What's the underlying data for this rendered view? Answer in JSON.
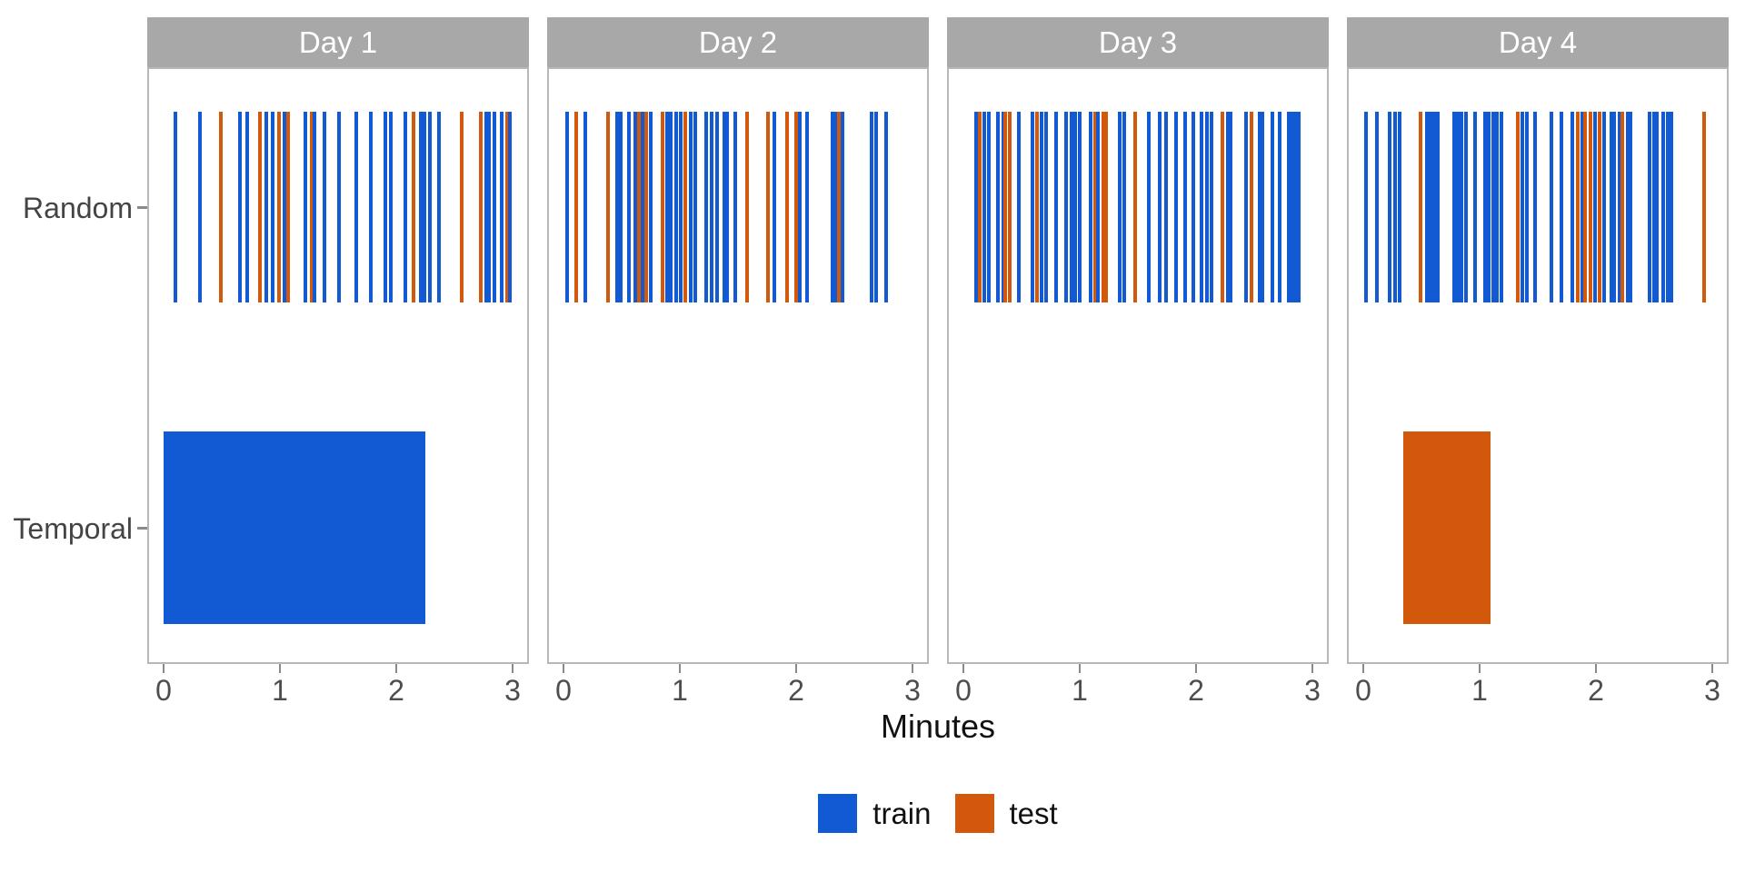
{
  "chart_data": {
    "type": "event-raster-facets",
    "xlabel": "Minutes",
    "xlim": [
      0,
      3
    ],
    "x_ticks": [
      "0",
      "1",
      "2",
      "3"
    ],
    "row_labels": [
      "Random",
      "Temporal"
    ],
    "legend": [
      {
        "label": "train",
        "class": "train"
      },
      {
        "label": "test",
        "class": "test"
      }
    ],
    "colors": {
      "train": "#1259d4",
      "test": "#d2580c",
      "strip_bg": "#a8a8a8",
      "strip_text": "#ffffff",
      "panel_border": "#b8b8b8",
      "tick_mark": "#8a8a8a",
      "tick_label": "#4d4d4d"
    },
    "panels": [
      {
        "label": "Day 1",
        "random_events": [
          [
            0.1,
            "train"
          ],
          [
            0.31,
            "train"
          ],
          [
            0.49,
            "test"
          ],
          [
            0.66,
            "train"
          ],
          [
            0.72,
            "train"
          ],
          [
            0.83,
            "test"
          ],
          [
            0.88,
            "train"
          ],
          [
            0.94,
            "train"
          ],
          [
            0.99,
            "test"
          ],
          [
            1.04,
            "train"
          ],
          [
            1.07,
            "test"
          ],
          [
            1.22,
            "train"
          ],
          [
            1.27,
            "test"
          ],
          [
            1.3,
            "train"
          ],
          [
            1.38,
            "train"
          ],
          [
            1.51,
            "train"
          ],
          [
            1.66,
            "train"
          ],
          [
            1.78,
            "train"
          ],
          [
            1.91,
            "train"
          ],
          [
            1.95,
            "train"
          ],
          [
            2.08,
            "train"
          ],
          [
            2.15,
            "test"
          ],
          [
            2.21,
            "train"
          ],
          [
            2.24,
            "train"
          ],
          [
            2.29,
            "train"
          ],
          [
            2.37,
            "train"
          ],
          [
            2.56,
            "test"
          ],
          [
            2.73,
            "test"
          ],
          [
            2.77,
            "train"
          ],
          [
            2.8,
            "train"
          ],
          [
            2.84,
            "train"
          ],
          [
            2.91,
            "train"
          ],
          [
            2.95,
            "test"
          ],
          [
            2.98,
            "train"
          ]
        ],
        "temporal_segments": [
          {
            "start": 0.0,
            "end": 2.25,
            "class": "train"
          }
        ]
      },
      {
        "label": "Day 2",
        "random_events": [
          [
            0.03,
            "train"
          ],
          [
            0.11,
            "test"
          ],
          [
            0.19,
            "train"
          ],
          [
            0.38,
            "test"
          ],
          [
            0.46,
            "train"
          ],
          [
            0.49,
            "train"
          ],
          [
            0.56,
            "train"
          ],
          [
            0.62,
            "train"
          ],
          [
            0.65,
            "test"
          ],
          [
            0.68,
            "train"
          ],
          [
            0.71,
            "test"
          ],
          [
            0.75,
            "train"
          ],
          [
            0.85,
            "test"
          ],
          [
            0.89,
            "train"
          ],
          [
            0.92,
            "train"
          ],
          [
            0.97,
            "train"
          ],
          [
            1.01,
            "train"
          ],
          [
            1.05,
            "test"
          ],
          [
            1.09,
            "train"
          ],
          [
            1.13,
            "train"
          ],
          [
            1.23,
            "train"
          ],
          [
            1.27,
            "train"
          ],
          [
            1.32,
            "train"
          ],
          [
            1.38,
            "train"
          ],
          [
            1.41,
            "train"
          ],
          [
            1.48,
            "train"
          ],
          [
            1.58,
            "test"
          ],
          [
            1.76,
            "test"
          ],
          [
            1.81,
            "train"
          ],
          [
            1.92,
            "test"
          ],
          [
            2.0,
            "test"
          ],
          [
            2.03,
            "train"
          ],
          [
            2.09,
            "train"
          ],
          [
            2.31,
            "train"
          ],
          [
            2.34,
            "train"
          ],
          [
            2.37,
            "test"
          ],
          [
            2.4,
            "train"
          ],
          [
            2.65,
            "train"
          ],
          [
            2.69,
            "train"
          ],
          [
            2.77,
            "train"
          ]
        ],
        "temporal_segments": []
      },
      {
        "label": "Day 3",
        "random_events": [
          [
            0.11,
            "train"
          ],
          [
            0.14,
            "test"
          ],
          [
            0.18,
            "train"
          ],
          [
            0.22,
            "train"
          ],
          [
            0.3,
            "train"
          ],
          [
            0.34,
            "train"
          ],
          [
            0.36,
            "test"
          ],
          [
            0.4,
            "test"
          ],
          [
            0.48,
            "train"
          ],
          [
            0.59,
            "train"
          ],
          [
            0.63,
            "test"
          ],
          [
            0.67,
            "train"
          ],
          [
            0.71,
            "train"
          ],
          [
            0.8,
            "train"
          ],
          [
            0.88,
            "train"
          ],
          [
            0.93,
            "train"
          ],
          [
            0.96,
            "train"
          ],
          [
            1.0,
            "train"
          ],
          [
            1.09,
            "train"
          ],
          [
            1.13,
            "test"
          ],
          [
            1.16,
            "train"
          ],
          [
            1.2,
            "test"
          ],
          [
            1.23,
            "test"
          ],
          [
            1.34,
            "train"
          ],
          [
            1.38,
            "train"
          ],
          [
            1.48,
            "test"
          ],
          [
            1.59,
            "train"
          ],
          [
            1.69,
            "train"
          ],
          [
            1.74,
            "train"
          ],
          [
            1.83,
            "train"
          ],
          [
            1.91,
            "train"
          ],
          [
            1.98,
            "train"
          ],
          [
            2.05,
            "train"
          ],
          [
            2.09,
            "train"
          ],
          [
            2.13,
            "train"
          ],
          [
            2.23,
            "test"
          ],
          [
            2.27,
            "train"
          ],
          [
            2.3,
            "train"
          ],
          [
            2.43,
            "train"
          ],
          [
            2.48,
            "test"
          ],
          [
            2.55,
            "train"
          ],
          [
            2.57,
            "train"
          ],
          [
            2.66,
            "train"
          ],
          [
            2.72,
            "train"
          ],
          [
            2.8,
            "train"
          ],
          [
            2.82,
            "train"
          ],
          [
            2.85,
            "train"
          ],
          [
            2.88,
            "train"
          ]
        ],
        "temporal_segments": []
      },
      {
        "label": "Day 4",
        "random_events": [
          [
            0.02,
            "train"
          ],
          [
            0.12,
            "train"
          ],
          [
            0.23,
            "train"
          ],
          [
            0.27,
            "train"
          ],
          [
            0.31,
            "train"
          ],
          [
            0.49,
            "test"
          ],
          [
            0.55,
            "train"
          ],
          [
            0.58,
            "train"
          ],
          [
            0.61,
            "train"
          ],
          [
            0.64,
            "train"
          ],
          [
            0.78,
            "train"
          ],
          [
            0.81,
            "train"
          ],
          [
            0.84,
            "train"
          ],
          [
            0.88,
            "train"
          ],
          [
            0.96,
            "train"
          ],
          [
            1.05,
            "train"
          ],
          [
            1.08,
            "train"
          ],
          [
            1.12,
            "train"
          ],
          [
            1.15,
            "train"
          ],
          [
            1.19,
            "train"
          ],
          [
            1.33,
            "test"
          ],
          [
            1.37,
            "train"
          ],
          [
            1.41,
            "train"
          ],
          [
            1.48,
            "train"
          ],
          [
            1.62,
            "train"
          ],
          [
            1.7,
            "train"
          ],
          [
            1.8,
            "train"
          ],
          [
            1.84,
            "test"
          ],
          [
            1.88,
            "train"
          ],
          [
            1.91,
            "test"
          ],
          [
            1.95,
            "test"
          ],
          [
            1.99,
            "train"
          ],
          [
            2.03,
            "test"
          ],
          [
            2.07,
            "train"
          ],
          [
            2.13,
            "train"
          ],
          [
            2.16,
            "train"
          ],
          [
            2.2,
            "train"
          ],
          [
            2.23,
            "test"
          ],
          [
            2.27,
            "train"
          ],
          [
            2.3,
            "train"
          ],
          [
            2.46,
            "train"
          ],
          [
            2.5,
            "train"
          ],
          [
            2.52,
            "train"
          ],
          [
            2.58,
            "train"
          ],
          [
            2.62,
            "train"
          ],
          [
            2.65,
            "train"
          ],
          [
            2.93,
            "test"
          ]
        ],
        "temporal_segments": [
          {
            "start": 0.34,
            "end": 1.09,
            "class": "test"
          }
        ]
      }
    ]
  }
}
